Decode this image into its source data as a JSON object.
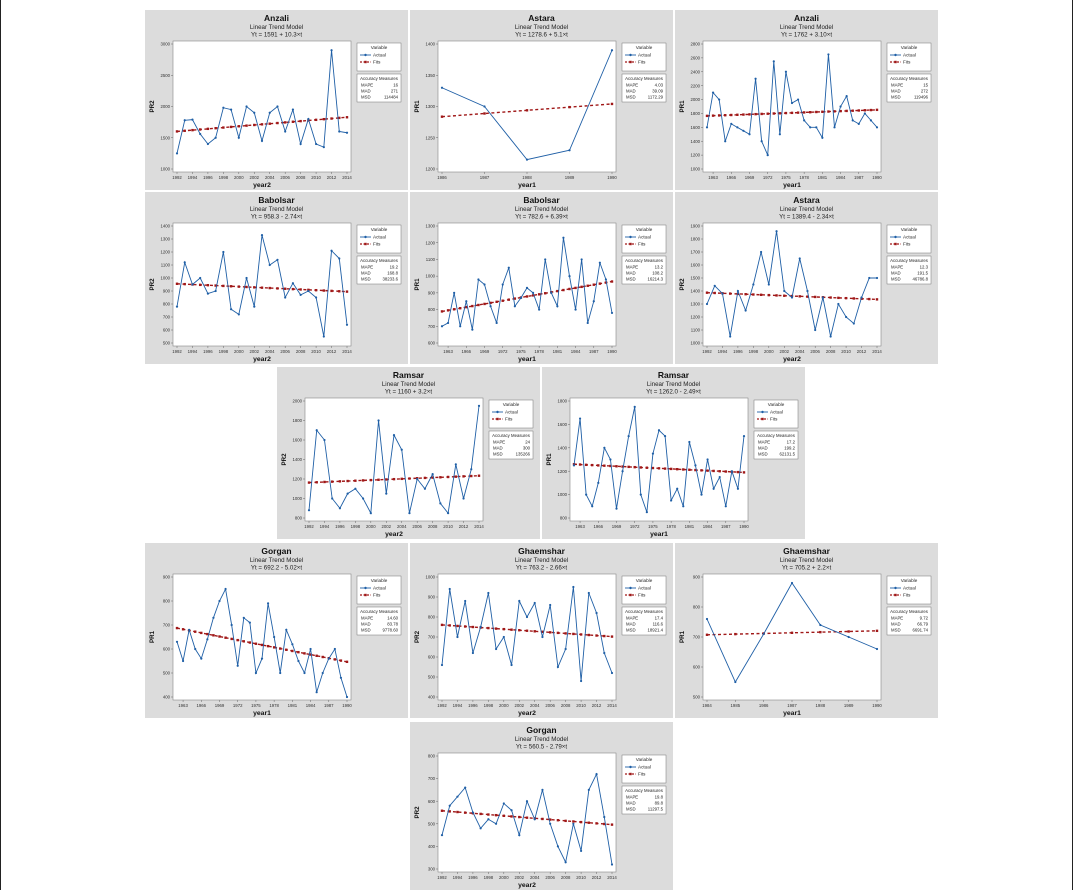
{
  "legend": {
    "heading": "Variable",
    "actual": "Actual",
    "fits": "Fits",
    "accuracy_heading": "Accuracy Measures",
    "labels": [
      "MAPE",
      "MAD",
      "MSD"
    ]
  },
  "colors": {
    "actual": "#1f5fa6",
    "fits": "#a01818",
    "panel": "#dcdcdc",
    "plot": "#ffffff"
  },
  "chart_data": [
    {
      "type": "line",
      "title": "Anzali",
      "subtitle": "Linear Trend Model",
      "equation": "Yt = 1591 + 10.3×t",
      "xlabel": "year2",
      "ylabel": "PR2",
      "x": [
        1992,
        1993,
        1994,
        1995,
        1996,
        1997,
        1998,
        1999,
        2000,
        2001,
        2002,
        2003,
        2004,
        2005,
        2006,
        2007,
        2008,
        2009,
        2010,
        2011,
        2012,
        2013,
        2014
      ],
      "xticks": [
        1992,
        1994,
        1996,
        1998,
        2000,
        2002,
        2004,
        2006,
        2008,
        2010,
        2012,
        2014
      ],
      "ylim": [
        1000,
        3000
      ],
      "yticks": [
        1000,
        1500,
        2000,
        2500,
        3000
      ],
      "actual": [
        1250,
        1780,
        1790,
        1560,
        1400,
        1500,
        1980,
        1950,
        1500,
        2000,
        1900,
        1450,
        1900,
        2000,
        1600,
        1950,
        1400,
        1800,
        1400,
        1350,
        2900,
        1600,
        1580
      ],
      "trend": [
        1591,
        10.3
      ],
      "accuracy": [
        "16",
        "271",
        "114484"
      ]
    },
    {
      "type": "line",
      "title": "Astara",
      "subtitle": "Linear Trend Model",
      "equation": "Yt = 1278.6 + 5.1×t",
      "xlabel": "year1",
      "ylabel": "PR1",
      "x": [
        1986,
        1987,
        1988,
        1989,
        1990
      ],
      "xticks": [
        1986,
        1987,
        1988,
        1989,
        1990
      ],
      "ylim": [
        1200,
        1400
      ],
      "yticks": [
        1200,
        1250,
        1300,
        1350,
        1400
      ],
      "actual": [
        1330,
        1300,
        1215,
        1230,
        1390
      ],
      "trend": [
        1278.6,
        5.1
      ],
      "accuracy": [
        "4.03",
        "39.09",
        "1172.29"
      ]
    },
    {
      "type": "line",
      "title": "Anzali",
      "subtitle": "Linear Trend Model",
      "equation": "Yt = 1762 + 3.10×t",
      "xlabel": "year1",
      "ylabel": "PR1",
      "x": [
        1962,
        1963,
        1964,
        1965,
        1966,
        1967,
        1968,
        1969,
        1970,
        1971,
        1972,
        1973,
        1974,
        1975,
        1976,
        1977,
        1978,
        1979,
        1980,
        1981,
        1982,
        1983,
        1984,
        1985,
        1986,
        1987,
        1988,
        1989,
        1990
      ],
      "xticks": [
        1963,
        1966,
        1969,
        1972,
        1975,
        1978,
        1981,
        1984,
        1987,
        1990
      ],
      "ylim": [
        1000,
        2800
      ],
      "yticks": [
        1000,
        1200,
        1400,
        1600,
        1800,
        2000,
        2200,
        2400,
        2600,
        2800
      ],
      "actual": [
        1600,
        2100,
        2000,
        1400,
        1650,
        1600,
        1550,
        1500,
        2300,
        1400,
        1200,
        2550,
        1500,
        2400,
        1950,
        2000,
        1700,
        1600,
        1600,
        1450,
        2650,
        1600,
        1900,
        2050,
        1700,
        1650,
        1800,
        1700,
        1600
      ],
      "trend": [
        1762,
        3.1
      ],
      "accuracy": [
        "15",
        "272",
        "119496"
      ]
    },
    {
      "type": "line",
      "title": "Babolsar",
      "subtitle": "Linear Trend Model",
      "equation": "Yt = 958.3 - 2.74×t",
      "xlabel": "year2",
      "ylabel": "PR2",
      "x": [
        1992,
        1993,
        1994,
        1995,
        1996,
        1997,
        1998,
        1999,
        2000,
        2001,
        2002,
        2003,
        2004,
        2005,
        2006,
        2007,
        2008,
        2009,
        2010,
        2011,
        2012,
        2013,
        2014
      ],
      "xticks": [
        1992,
        1994,
        1996,
        1998,
        2000,
        2002,
        2004,
        2006,
        2008,
        2010,
        2012,
        2014
      ],
      "ylim": [
        500,
        1400
      ],
      "yticks": [
        500,
        600,
        700,
        800,
        900,
        1000,
        1100,
        1200,
        1300,
        1400
      ],
      "actual": [
        780,
        1120,
        950,
        1000,
        880,
        900,
        1200,
        760,
        720,
        1000,
        780,
        1330,
        1100,
        1140,
        850,
        960,
        870,
        900,
        850,
        550,
        1210,
        1150,
        640
      ],
      "trend": [
        958.3,
        -2.74
      ],
      "accuracy": [
        "19.2",
        "168.8",
        "38233.6"
      ]
    },
    {
      "type": "line",
      "title": "Babolsar",
      "subtitle": "Linear Trend Model",
      "equation": "Yt = 782.6 + 6.39×t",
      "xlabel": "year1",
      "ylabel": "PR1",
      "x": [
        1962,
        1963,
        1964,
        1965,
        1966,
        1967,
        1968,
        1969,
        1970,
        1971,
        1972,
        1973,
        1974,
        1975,
        1976,
        1977,
        1978,
        1979,
        1980,
        1981,
        1982,
        1983,
        1984,
        1985,
        1986,
        1987,
        1988,
        1989,
        1990
      ],
      "xticks": [
        1963,
        1966,
        1969,
        1972,
        1975,
        1978,
        1981,
        1984,
        1987,
        1990
      ],
      "ylim": [
        600,
        1300
      ],
      "yticks": [
        600,
        700,
        800,
        900,
        1000,
        1100,
        1200,
        1300
      ],
      "actual": [
        700,
        720,
        900,
        700,
        850,
        680,
        980,
        950,
        820,
        720,
        950,
        1050,
        820,
        870,
        930,
        900,
        800,
        1100,
        900,
        820,
        1230,
        1000,
        800,
        1100,
        720,
        850,
        1080,
        980,
        780
      ],
      "trend": [
        782.6,
        6.39
      ],
      "accuracy": [
        "13.2",
        "108.2",
        "16214.3"
      ]
    },
    {
      "type": "line",
      "title": "Astara",
      "subtitle": "Linear Trend Model",
      "equation": "Yt = 1389.4 - 2.34×t",
      "xlabel": "year2",
      "ylabel": "PR2",
      "x": [
        1992,
        1993,
        1994,
        1995,
        1996,
        1997,
        1998,
        1999,
        2000,
        2001,
        2002,
        2003,
        2004,
        2005,
        2006,
        2007,
        2008,
        2009,
        2010,
        2011,
        2012,
        2013,
        2014
      ],
      "xticks": [
        1992,
        1994,
        1996,
        1998,
        2000,
        2002,
        2004,
        2006,
        2008,
        2010,
        2012,
        2014
      ],
      "ylim": [
        1000,
        1900
      ],
      "yticks": [
        1000,
        1100,
        1200,
        1300,
        1400,
        1500,
        1600,
        1700,
        1800,
        1900
      ],
      "actual": [
        1300,
        1440,
        1380,
        1050,
        1400,
        1250,
        1450,
        1700,
        1450,
        1860,
        1400,
        1350,
        1650,
        1400,
        1100,
        1350,
        1050,
        1300,
        1200,
        1150,
        1350,
        1500,
        1500
      ],
      "trend": [
        1389.4,
        -2.34
      ],
      "accuracy": [
        "12.3",
        "191.5",
        "46786.8"
      ]
    },
    {
      "type": "line",
      "title": "Ramsar",
      "subtitle": "Linear Trend Model",
      "equation": "Yt = 1160 + 3.2×t",
      "xlabel": "year2",
      "ylabel": "PR2",
      "x": [
        1992,
        1993,
        1994,
        1995,
        1996,
        1997,
        1998,
        1999,
        2000,
        2001,
        2002,
        2003,
        2004,
        2005,
        2006,
        2007,
        2008,
        2009,
        2010,
        2011,
        2012,
        2013,
        2014
      ],
      "xticks": [
        1992,
        1994,
        1996,
        1998,
        2000,
        2002,
        2004,
        2006,
        2008,
        2010,
        2012,
        2014
      ],
      "ylim": [
        800,
        2000
      ],
      "yticks": [
        800,
        1000,
        1200,
        1400,
        1600,
        1800,
        2000
      ],
      "actual": [
        880,
        1700,
        1600,
        1000,
        900,
        1050,
        1100,
        1000,
        850,
        1800,
        1050,
        1650,
        1500,
        850,
        1200,
        1100,
        1250,
        950,
        850,
        1350,
        1000,
        1300,
        1950
      ],
      "trend": [
        1160,
        3.2
      ],
      "accuracy": [
        "24",
        "300",
        "135266"
      ]
    },
    {
      "type": "line",
      "title": "Ramsar",
      "subtitle": "Linear Trend Model",
      "equation": "Yt = 1262.0 - 2.49×t",
      "xlabel": "year1",
      "ylabel": "PR1",
      "x": [
        1962,
        1963,
        1964,
        1965,
        1966,
        1967,
        1968,
        1969,
        1970,
        1971,
        1972,
        1973,
        1974,
        1975,
        1976,
        1977,
        1978,
        1979,
        1980,
        1981,
        1982,
        1983,
        1984,
        1985,
        1986,
        1987,
        1988,
        1989,
        1990
      ],
      "xticks": [
        1963,
        1966,
        1969,
        1972,
        1975,
        1978,
        1981,
        1984,
        1987,
        1990
      ],
      "ylim": [
        800,
        1800
      ],
      "yticks": [
        800,
        1000,
        1200,
        1400,
        1600,
        1800
      ],
      "actual": [
        1250,
        1650,
        1000,
        900,
        1100,
        1400,
        1300,
        880,
        1200,
        1500,
        1750,
        1000,
        850,
        1350,
        1550,
        1500,
        950,
        1050,
        900,
        1450,
        1250,
        1000,
        1300,
        1050,
        1150,
        900,
        1200,
        1050,
        1500
      ],
      "trend": [
        1262.0,
        -2.49
      ],
      "accuracy": [
        "17.2",
        "199.2",
        "62131.5"
      ]
    },
    {
      "type": "line",
      "title": "Gorgan",
      "subtitle": "Linear Trend Model",
      "equation": "Yt = 692.2 - 5.02×t",
      "xlabel": "year1",
      "ylabel": "PR1",
      "x": [
        1962,
        1963,
        1964,
        1965,
        1966,
        1967,
        1968,
        1969,
        1970,
        1971,
        1972,
        1973,
        1974,
        1975,
        1976,
        1977,
        1978,
        1979,
        1980,
        1981,
        1982,
        1983,
        1984,
        1985,
        1986,
        1987,
        1988,
        1989,
        1990
      ],
      "xticks": [
        1963,
        1966,
        1969,
        1972,
        1975,
        1978,
        1981,
        1984,
        1987,
        1990
      ],
      "ylim": [
        400,
        900
      ],
      "yticks": [
        400,
        500,
        600,
        700,
        800,
        900
      ],
      "actual": [
        630,
        550,
        680,
        600,
        560,
        640,
        730,
        800,
        850,
        700,
        530,
        730,
        710,
        500,
        560,
        790,
        650,
        500,
        680,
        620,
        550,
        500,
        600,
        420,
        500,
        560,
        600,
        480,
        400
      ],
      "trend": [
        692.2,
        -5.02
      ],
      "accuracy": [
        "14.60",
        "83.78",
        "9778.60"
      ]
    },
    {
      "type": "line",
      "title": "Ghaemshar",
      "subtitle": "Linear Trend Model",
      "equation": "Yt = 763.2 - 2.66×t",
      "xlabel": "year2",
      "ylabel": "PR2",
      "x": [
        1992,
        1993,
        1994,
        1995,
        1996,
        1997,
        1998,
        1999,
        2000,
        2001,
        2002,
        2003,
        2004,
        2005,
        2006,
        2007,
        2008,
        2009,
        2010,
        2011,
        2012,
        2013,
        2014
      ],
      "xticks": [
        1992,
        1994,
        1996,
        1998,
        2000,
        2002,
        2004,
        2006,
        2008,
        2010,
        2012,
        2014
      ],
      "ylim": [
        400,
        1000
      ],
      "yticks": [
        400,
        500,
        600,
        700,
        800,
        900,
        1000
      ],
      "actual": [
        560,
        940,
        700,
        880,
        620,
        750,
        920,
        640,
        700,
        560,
        880,
        800,
        870,
        700,
        860,
        550,
        640,
        950,
        480,
        920,
        820,
        620,
        520
      ],
      "trend": [
        763.2,
        -2.66
      ],
      "accuracy": [
        "17.4",
        "116.6",
        "18921.4"
      ]
    },
    {
      "type": "line",
      "title": "Ghaemshar",
      "subtitle": "Linear Trend Model",
      "equation": "Yt = 705.2 + 2.2×t",
      "xlabel": "year1",
      "ylabel": "PR1",
      "x": [
        1984,
        1985,
        1986,
        1987,
        1988,
        1989,
        1990
      ],
      "xticks": [
        1984,
        1985,
        1986,
        1987,
        1988,
        1989,
        1990
      ],
      "ylim": [
        500,
        900
      ],
      "yticks": [
        500,
        600,
        700,
        800,
        900
      ],
      "actual": [
        760,
        550,
        710,
        880,
        740,
        700,
        660
      ],
      "trend": [
        705.2,
        2.2
      ],
      "accuracy": [
        "9.72",
        "66.79",
        "6691.74"
      ]
    },
    {
      "type": "line",
      "title": "Gorgan",
      "subtitle": "Linear Trend Model",
      "equation": "Yt = 560.5 - 2.79×t",
      "xlabel": "year2",
      "ylabel": "PR2",
      "x": [
        1992,
        1993,
        1994,
        1995,
        1996,
        1997,
        1998,
        1999,
        2000,
        2001,
        2002,
        2003,
        2004,
        2005,
        2006,
        2007,
        2008,
        2009,
        2010,
        2011,
        2012,
        2013,
        2014
      ],
      "xticks": [
        1992,
        1994,
        1996,
        1998,
        2000,
        2002,
        2004,
        2006,
        2008,
        2010,
        2012,
        2014
      ],
      "ylim": [
        300,
        800
      ],
      "yticks": [
        300,
        400,
        500,
        600,
        700,
        800
      ],
      "actual": [
        450,
        580,
        620,
        660,
        550,
        480,
        520,
        500,
        590,
        560,
        450,
        600,
        520,
        650,
        500,
        400,
        330,
        500,
        380,
        650,
        720,
        530,
        320
      ],
      "trend": [
        560.5,
        -2.79
      ],
      "accuracy": [
        "19.8",
        "89.8",
        "11297.5"
      ]
    }
  ]
}
